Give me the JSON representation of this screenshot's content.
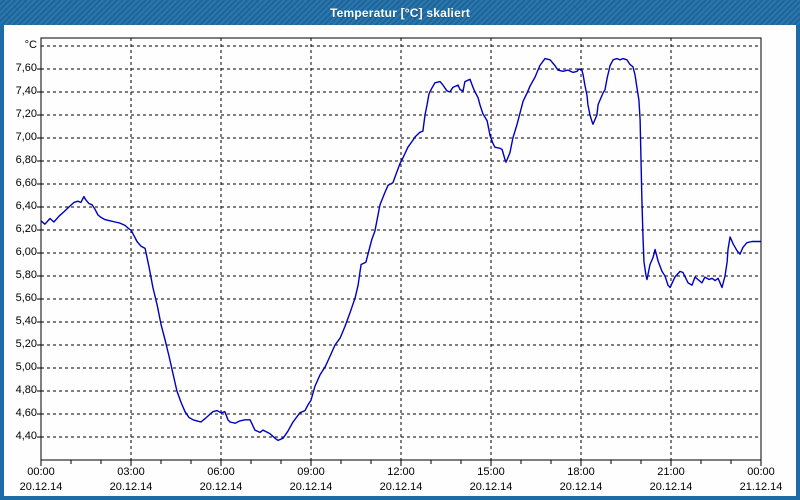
{
  "window": {
    "title": "Temperatur [°C] skaliert"
  },
  "colors": {
    "titlebar": "#1d6ca6",
    "line": "#0000bf",
    "grid": "#000000",
    "plot_background": "#fdfefd"
  },
  "chart_data": {
    "type": "line",
    "title": "Temperatur [°C] skaliert",
    "unit_label": "°C",
    "grid": "dashed",
    "legend": "none",
    "x_range_hours": [
      0,
      24
    ],
    "y_axis": {
      "label_min": 4.4,
      "label_max": 7.6,
      "step": 0.2,
      "plot_bottom_value": 4.2,
      "plot_top_value": 7.87
    },
    "y_tick_labels": [
      "7,60",
      "7,40",
      "7,20",
      "7,00",
      "6,80",
      "6,60",
      "6,40",
      "6,20",
      "6,00",
      "5,80",
      "5,60",
      "5,40",
      "5,20",
      "5,00",
      "4,80",
      "4,60",
      "4,40"
    ],
    "y_tick_values": [
      7.6,
      7.4,
      7.2,
      7.0,
      6.8,
      6.6,
      6.4,
      6.2,
      6.0,
      5.8,
      5.6,
      5.4,
      5.2,
      5.0,
      4.8,
      4.6,
      4.4
    ],
    "x_ticks": [
      {
        "hour": 0,
        "time": "00:00",
        "date": "20.12.14"
      },
      {
        "hour": 3,
        "time": "03:00",
        "date": "20.12.14"
      },
      {
        "hour": 6,
        "time": "06:00",
        "date": "20.12.14"
      },
      {
        "hour": 9,
        "time": "09:00",
        "date": "20.12.14"
      },
      {
        "hour": 12,
        "time": "12:00",
        "date": "20.12.14"
      },
      {
        "hour": 15,
        "time": "15:00",
        "date": "20.12.14"
      },
      {
        "hour": 18,
        "time": "18:00",
        "date": "20.12.14"
      },
      {
        "hour": 21,
        "time": "21:00",
        "date": "20.12.14"
      },
      {
        "hour": 24,
        "time": "00:00",
        "date": "21.12.14"
      }
    ],
    "series": [
      {
        "name": "Temperatur",
        "color": "#0000bf",
        "points": [
          [
            0.0,
            6.28
          ],
          [
            0.13,
            6.25
          ],
          [
            0.3,
            6.3
          ],
          [
            0.43,
            6.27
          ],
          [
            0.6,
            6.32
          ],
          [
            0.77,
            6.36
          ],
          [
            0.93,
            6.4
          ],
          [
            1.1,
            6.44
          ],
          [
            1.23,
            6.45
          ],
          [
            1.33,
            6.44
          ],
          [
            1.43,
            6.49
          ],
          [
            1.5,
            6.46
          ],
          [
            1.6,
            6.43
          ],
          [
            1.7,
            6.42
          ],
          [
            1.8,
            6.38
          ],
          [
            1.9,
            6.33
          ],
          [
            2.0,
            6.31
          ],
          [
            2.13,
            6.29
          ],
          [
            2.3,
            6.28
          ],
          [
            2.47,
            6.27
          ],
          [
            2.63,
            6.26
          ],
          [
            2.8,
            6.24
          ],
          [
            2.93,
            6.21
          ],
          [
            3.0,
            6.2
          ],
          [
            3.1,
            6.15
          ],
          [
            3.2,
            6.1
          ],
          [
            3.33,
            6.06
          ],
          [
            3.47,
            6.04
          ],
          [
            3.6,
            5.88
          ],
          [
            3.73,
            5.7
          ],
          [
            3.87,
            5.55
          ],
          [
            4.0,
            5.38
          ],
          [
            4.13,
            5.25
          ],
          [
            4.27,
            5.1
          ],
          [
            4.4,
            4.95
          ],
          [
            4.53,
            4.8
          ],
          [
            4.67,
            4.7
          ],
          [
            4.8,
            4.62
          ],
          [
            4.93,
            4.57
          ],
          [
            5.07,
            4.55
          ],
          [
            5.2,
            4.54
          ],
          [
            5.33,
            4.53
          ],
          [
            5.47,
            4.56
          ],
          [
            5.6,
            4.59
          ],
          [
            5.73,
            4.62
          ],
          [
            5.87,
            4.63
          ],
          [
            6.0,
            4.61
          ],
          [
            6.13,
            4.62
          ],
          [
            6.23,
            4.55
          ],
          [
            6.3,
            4.53
          ],
          [
            6.47,
            4.52
          ],
          [
            6.63,
            4.54
          ],
          [
            6.8,
            4.55
          ],
          [
            6.97,
            4.55
          ],
          [
            7.13,
            4.46
          ],
          [
            7.3,
            4.44
          ],
          [
            7.4,
            4.46
          ],
          [
            7.63,
            4.43
          ],
          [
            7.8,
            4.39
          ],
          [
            7.9,
            4.37
          ],
          [
            8.07,
            4.39
          ],
          [
            8.23,
            4.45
          ],
          [
            8.4,
            4.53
          ],
          [
            8.63,
            4.61
          ],
          [
            8.8,
            4.63
          ],
          [
            8.9,
            4.68
          ],
          [
            9.0,
            4.72
          ],
          [
            9.13,
            4.84
          ],
          [
            9.3,
            4.94
          ],
          [
            9.47,
            5.01
          ],
          [
            9.63,
            5.1
          ],
          [
            9.8,
            5.2
          ],
          [
            9.97,
            5.26
          ],
          [
            10.13,
            5.36
          ],
          [
            10.3,
            5.48
          ],
          [
            10.47,
            5.61
          ],
          [
            10.57,
            5.72
          ],
          [
            10.63,
            5.83
          ],
          [
            10.67,
            5.9
          ],
          [
            10.83,
            5.92
          ],
          [
            10.9,
            5.99
          ],
          [
            11.03,
            6.12
          ],
          [
            11.13,
            6.19
          ],
          [
            11.3,
            6.42
          ],
          [
            11.47,
            6.53
          ],
          [
            11.57,
            6.59
          ],
          [
            11.73,
            6.61
          ],
          [
            11.87,
            6.71
          ],
          [
            11.97,
            6.78
          ],
          [
            12.07,
            6.83
          ],
          [
            12.23,
            6.92
          ],
          [
            12.37,
            6.97
          ],
          [
            12.47,
            7.01
          ],
          [
            12.63,
            7.05
          ],
          [
            12.73,
            7.06
          ],
          [
            12.8,
            7.2
          ],
          [
            12.87,
            7.29
          ],
          [
            12.93,
            7.38
          ],
          [
            13.0,
            7.42
          ],
          [
            13.13,
            7.48
          ],
          [
            13.3,
            7.49
          ],
          [
            13.4,
            7.46
          ],
          [
            13.53,
            7.41
          ],
          [
            13.63,
            7.4
          ],
          [
            13.73,
            7.44
          ],
          [
            13.9,
            7.46
          ],
          [
            13.97,
            7.42
          ],
          [
            14.07,
            7.41
          ],
          [
            14.13,
            7.49
          ],
          [
            14.3,
            7.51
          ],
          [
            14.4,
            7.44
          ],
          [
            14.47,
            7.4
          ],
          [
            14.57,
            7.35
          ],
          [
            14.63,
            7.29
          ],
          [
            14.73,
            7.21
          ],
          [
            14.87,
            7.15
          ],
          [
            14.97,
            7.02
          ],
          [
            15.07,
            6.95
          ],
          [
            15.13,
            6.92
          ],
          [
            15.3,
            6.91
          ],
          [
            15.37,
            6.9
          ],
          [
            15.47,
            6.81
          ],
          [
            15.5,
            6.79
          ],
          [
            15.63,
            6.87
          ],
          [
            15.73,
            7.0
          ],
          [
            15.87,
            7.12
          ],
          [
            15.97,
            7.22
          ],
          [
            16.07,
            7.32
          ],
          [
            16.2,
            7.39
          ],
          [
            16.3,
            7.45
          ],
          [
            16.47,
            7.53
          ],
          [
            16.63,
            7.63
          ],
          [
            16.8,
            7.69
          ],
          [
            16.97,
            7.68
          ],
          [
            17.13,
            7.63
          ],
          [
            17.23,
            7.59
          ],
          [
            17.4,
            7.58
          ],
          [
            17.57,
            7.59
          ],
          [
            17.73,
            7.57
          ],
          [
            17.87,
            7.58
          ],
          [
            17.93,
            7.6
          ],
          [
            18.03,
            7.59
          ],
          [
            18.07,
            7.55
          ],
          [
            18.13,
            7.46
          ],
          [
            18.2,
            7.37
          ],
          [
            18.23,
            7.29
          ],
          [
            18.3,
            7.2
          ],
          [
            18.37,
            7.14
          ],
          [
            18.4,
            7.12
          ],
          [
            18.53,
            7.2
          ],
          [
            18.57,
            7.29
          ],
          [
            18.7,
            7.37
          ],
          [
            18.73,
            7.39
          ],
          [
            18.8,
            7.42
          ],
          [
            18.87,
            7.52
          ],
          [
            18.97,
            7.63
          ],
          [
            19.07,
            7.68
          ],
          [
            19.2,
            7.69
          ],
          [
            19.3,
            7.68
          ],
          [
            19.4,
            7.69
          ],
          [
            19.53,
            7.68
          ],
          [
            19.63,
            7.64
          ],
          [
            19.73,
            7.62
          ],
          [
            19.8,
            7.55
          ],
          [
            19.87,
            7.43
          ],
          [
            19.93,
            7.33
          ],
          [
            19.97,
            7.16
          ],
          [
            20.0,
            6.81
          ],
          [
            20.03,
            6.46
          ],
          [
            20.07,
            6.11
          ],
          [
            20.1,
            5.92
          ],
          [
            20.17,
            5.8
          ],
          [
            20.2,
            5.77
          ],
          [
            20.3,
            5.9
          ],
          [
            20.4,
            5.96
          ],
          [
            20.47,
            6.03
          ],
          [
            20.57,
            5.93
          ],
          [
            20.7,
            5.84
          ],
          [
            20.8,
            5.8
          ],
          [
            20.9,
            5.72
          ],
          [
            20.97,
            5.7
          ],
          [
            21.13,
            5.79
          ],
          [
            21.3,
            5.84
          ],
          [
            21.4,
            5.83
          ],
          [
            21.57,
            5.74
          ],
          [
            21.7,
            5.72
          ],
          [
            21.8,
            5.79
          ],
          [
            21.9,
            5.77
          ],
          [
            22.03,
            5.74
          ],
          [
            22.13,
            5.79
          ],
          [
            22.27,
            5.77
          ],
          [
            22.37,
            5.78
          ],
          [
            22.47,
            5.76
          ],
          [
            22.57,
            5.78
          ],
          [
            22.7,
            5.7
          ],
          [
            22.8,
            5.8
          ],
          [
            22.87,
            5.92
          ],
          [
            22.9,
            6.03
          ],
          [
            22.97,
            6.14
          ],
          [
            23.07,
            6.08
          ],
          [
            23.2,
            6.02
          ],
          [
            23.3,
            5.99
          ],
          [
            23.4,
            6.05
          ],
          [
            23.53,
            6.09
          ],
          [
            23.7,
            6.1
          ],
          [
            23.9,
            6.1
          ],
          [
            24.0,
            6.1
          ]
        ]
      }
    ]
  }
}
